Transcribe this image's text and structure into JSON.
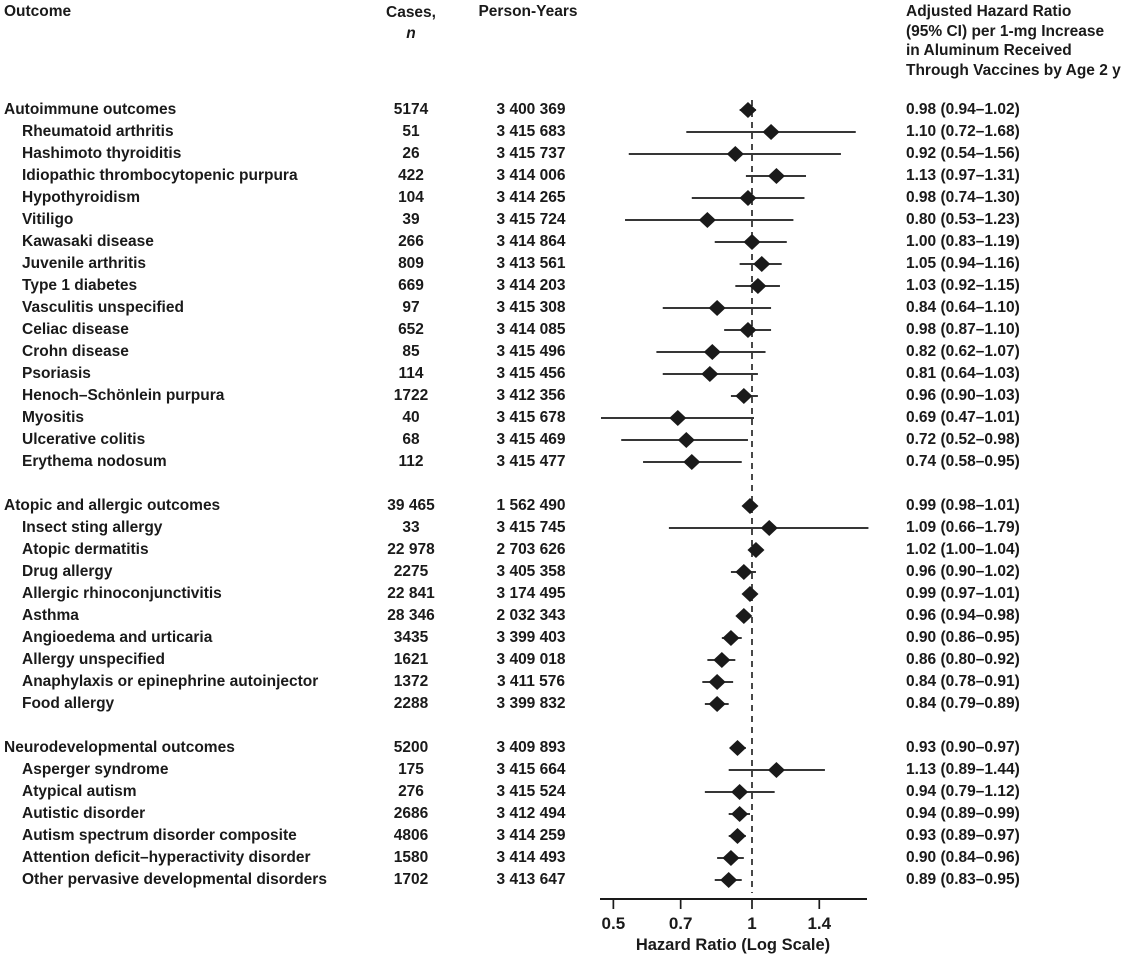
{
  "colors": {
    "ink": "#1a1a1a",
    "background": "#ffffff"
  },
  "columns": {
    "outcome": "Outcome",
    "cases_line1": "Cases,",
    "cases_line2": "n",
    "person_years": "Person-Years",
    "hr_header_lines": [
      "Adjusted Hazard Ratio",
      "(95% CI) per 1-mg Increase",
      "in Aluminum Received",
      "Through Vaccines by Age 2 y"
    ]
  },
  "chart_data": {
    "type": "scatter",
    "variant": "forest_plot",
    "x_scale": "log",
    "xlabel": "Hazard Ratio (Log Scale)",
    "x_ticks": [
      "0.5",
      "0.7",
      "1",
      "1.4"
    ],
    "x_range": [
      0.47,
      1.8
    ],
    "reference_line": 1,
    "marker": "filled-diamond",
    "rows": [
      {
        "label": "Autoimmune outcomes",
        "indent": 0,
        "cases": "5174",
        "person_years": "3 400 369",
        "hr": 0.98,
        "ci_low": 0.94,
        "ci_high": 1.02,
        "hr_text": "0.98 (0.94–1.02)"
      },
      {
        "label": "Rheumatoid arthritis",
        "indent": 1,
        "cases": "51",
        "person_years": "3 415 683",
        "hr": 1.1,
        "ci_low": 0.72,
        "ci_high": 1.68,
        "hr_text": "1.10 (0.72–1.68)"
      },
      {
        "label": "Hashimoto thyroiditis",
        "indent": 1,
        "cases": "26",
        "person_years": "3 415 737",
        "hr": 0.92,
        "ci_low": 0.54,
        "ci_high": 1.56,
        "hr_text": "0.92 (0.54–1.56)"
      },
      {
        "label": "Idiopathic thrombocytopenic purpura",
        "indent": 1,
        "cases": "422",
        "person_years": "3 414 006",
        "hr": 1.13,
        "ci_low": 0.97,
        "ci_high": 1.31,
        "hr_text": "1.13 (0.97–1.31)"
      },
      {
        "label": "Hypothyroidism",
        "indent": 1,
        "cases": "104",
        "person_years": "3 414 265",
        "hr": 0.98,
        "ci_low": 0.74,
        "ci_high": 1.3,
        "hr_text": "0.98 (0.74–1.30)"
      },
      {
        "label": "Vitiligo",
        "indent": 1,
        "cases": "39",
        "person_years": "3 415 724",
        "hr": 0.8,
        "ci_low": 0.53,
        "ci_high": 1.23,
        "hr_text": "0.80 (0.53–1.23)"
      },
      {
        "label": "Kawasaki disease",
        "indent": 1,
        "cases": "266",
        "person_years": "3 414 864",
        "hr": 1.0,
        "ci_low": 0.83,
        "ci_high": 1.19,
        "hr_text": "1.00 (0.83–1.19)"
      },
      {
        "label": "Juvenile arthritis",
        "indent": 1,
        "cases": "809",
        "person_years": "3 413 561",
        "hr": 1.05,
        "ci_low": 0.94,
        "ci_high": 1.16,
        "hr_text": "1.05 (0.94–1.16)"
      },
      {
        "label": "Type 1 diabetes",
        "indent": 1,
        "cases": "669",
        "person_years": "3 414 203",
        "hr": 1.03,
        "ci_low": 0.92,
        "ci_high": 1.15,
        "hr_text": "1.03 (0.92–1.15)"
      },
      {
        "label": "Vasculitis unspecified",
        "indent": 1,
        "cases": "97",
        "person_years": "3 415 308",
        "hr": 0.84,
        "ci_low": 0.64,
        "ci_high": 1.1,
        "hr_text": "0.84 (0.64–1.10)"
      },
      {
        "label": "Celiac disease",
        "indent": 1,
        "cases": "652",
        "person_years": "3 414 085",
        "hr": 0.98,
        "ci_low": 0.87,
        "ci_high": 1.1,
        "hr_text": "0.98 (0.87–1.10)"
      },
      {
        "label": "Crohn disease",
        "indent": 1,
        "cases": "85",
        "person_years": "3 415 496",
        "hr": 0.82,
        "ci_low": 0.62,
        "ci_high": 1.07,
        "hr_text": "0.82 (0.62–1.07)"
      },
      {
        "label": "Psoriasis",
        "indent": 1,
        "cases": "114",
        "person_years": "3 415 456",
        "hr": 0.81,
        "ci_low": 0.64,
        "ci_high": 1.03,
        "hr_text": "0.81 (0.64–1.03)"
      },
      {
        "label": "Henoch–Schönlein purpura",
        "indent": 1,
        "cases": "1722",
        "person_years": "3 412 356",
        "hr": 0.96,
        "ci_low": 0.9,
        "ci_high": 1.03,
        "hr_text": "0.96 (0.90–1.03)"
      },
      {
        "label": "Myositis",
        "indent": 1,
        "cases": "40",
        "person_years": "3 415 678",
        "hr": 0.69,
        "ci_low": 0.47,
        "ci_high": 1.01,
        "hr_text": "0.69 (0.47–1.01)"
      },
      {
        "label": "Ulcerative colitis",
        "indent": 1,
        "cases": "68",
        "person_years": "3 415 469",
        "hr": 0.72,
        "ci_low": 0.52,
        "ci_high": 0.98,
        "hr_text": "0.72 (0.52–0.98)"
      },
      {
        "label": "Erythema nodosum",
        "indent": 1,
        "cases": "112",
        "person_years": "3 415 477",
        "hr": 0.74,
        "ci_low": 0.58,
        "ci_high": 0.95,
        "hr_text": "0.74 (0.58–0.95)"
      },
      {
        "label": "Atopic and allergic outcomes",
        "indent": 0,
        "gap_before": true,
        "cases": "39 465",
        "person_years": "1 562 490",
        "hr": 0.99,
        "ci_low": 0.98,
        "ci_high": 1.01,
        "hr_text": "0.99 (0.98–1.01)"
      },
      {
        "label": "Insect sting allergy",
        "indent": 1,
        "cases": "33",
        "person_years": "3 415 745",
        "hr": 1.09,
        "ci_low": 0.66,
        "ci_high": 1.79,
        "hr_text": "1.09 (0.66–1.79)"
      },
      {
        "label": "Atopic dermatitis",
        "indent": 1,
        "cases": "22 978",
        "person_years": "2 703 626",
        "hr": 1.02,
        "ci_low": 1.0,
        "ci_high": 1.04,
        "hr_text": "1.02 (1.00–1.04)"
      },
      {
        "label": "Drug allergy",
        "indent": 1,
        "cases": "2275",
        "person_years": "3 405 358",
        "hr": 0.96,
        "ci_low": 0.9,
        "ci_high": 1.02,
        "hr_text": "0.96 (0.90–1.02)"
      },
      {
        "label": "Allergic rhinoconjunctivitis",
        "indent": 1,
        "cases": "22 841",
        "person_years": "3 174 495",
        "hr": 0.99,
        "ci_low": 0.97,
        "ci_high": 1.01,
        "hr_text": "0.99 (0.97–1.01)"
      },
      {
        "label": "Asthma",
        "indent": 1,
        "cases": "28 346",
        "person_years": "2 032 343",
        "hr": 0.96,
        "ci_low": 0.94,
        "ci_high": 0.98,
        "hr_text": "0.96 (0.94–0.98)"
      },
      {
        "label": "Angioedema and urticaria",
        "indent": 1,
        "cases": "3435",
        "person_years": "3 399 403",
        "hr": 0.9,
        "ci_low": 0.86,
        "ci_high": 0.95,
        "hr_text": "0.90 (0.86–0.95)"
      },
      {
        "label": "Allergy unspecified",
        "indent": 1,
        "cases": "1621",
        "person_years": "3 409 018",
        "hr": 0.86,
        "ci_low": 0.8,
        "ci_high": 0.92,
        "hr_text": "0.86 (0.80–0.92)"
      },
      {
        "label": "Anaphylaxis or epinephrine autoinjector",
        "indent": 1,
        "cases": "1372",
        "person_years": "3 411 576",
        "hr": 0.84,
        "ci_low": 0.78,
        "ci_high": 0.91,
        "hr_text": "0.84 (0.78–0.91)"
      },
      {
        "label": "Food allergy",
        "indent": 1,
        "cases": "2288",
        "person_years": "3 399 832",
        "hr": 0.84,
        "ci_low": 0.79,
        "ci_high": 0.89,
        "hr_text": "0.84 (0.79–0.89)"
      },
      {
        "label": "Neurodevelopmental outcomes",
        "indent": 0,
        "gap_before": true,
        "cases": "5200",
        "person_years": "3 409 893",
        "hr": 0.93,
        "ci_low": 0.9,
        "ci_high": 0.97,
        "hr_text": "0.93 (0.90–0.97)"
      },
      {
        "label": "Asperger syndrome",
        "indent": 1,
        "cases": "175",
        "person_years": "3 415 664",
        "hr": 1.13,
        "ci_low": 0.89,
        "ci_high": 1.44,
        "hr_text": "1.13 (0.89–1.44)"
      },
      {
        "label": "Atypical autism",
        "indent": 1,
        "cases": "276",
        "person_years": "3 415 524",
        "hr": 0.94,
        "ci_low": 0.79,
        "ci_high": 1.12,
        "hr_text": "0.94 (0.79–1.12)"
      },
      {
        "label": "Autistic disorder",
        "indent": 1,
        "cases": "2686",
        "person_years": "3 412 494",
        "hr": 0.94,
        "ci_low": 0.89,
        "ci_high": 0.99,
        "hr_text": "0.94 (0.89–0.99)"
      },
      {
        "label": "Autism spectrum disorder composite",
        "indent": 1,
        "cases": "4806",
        "person_years": "3 414 259",
        "hr": 0.93,
        "ci_low": 0.89,
        "ci_high": 0.97,
        "hr_text": "0.93 (0.89–0.97)"
      },
      {
        "label": "Attention deficit–hyperactivity disorder",
        "indent": 1,
        "cases": "1580",
        "person_years": "3 414 493",
        "hr": 0.9,
        "ci_low": 0.84,
        "ci_high": 0.96,
        "hr_text": "0.90 (0.84–0.96)"
      },
      {
        "label": "Other pervasive developmental disorders",
        "indent": 1,
        "cases": "1702",
        "person_years": "3 413 647",
        "hr": 0.89,
        "ci_low": 0.83,
        "ci_high": 0.95,
        "hr_text": "0.89 (0.83–0.95)"
      }
    ]
  }
}
